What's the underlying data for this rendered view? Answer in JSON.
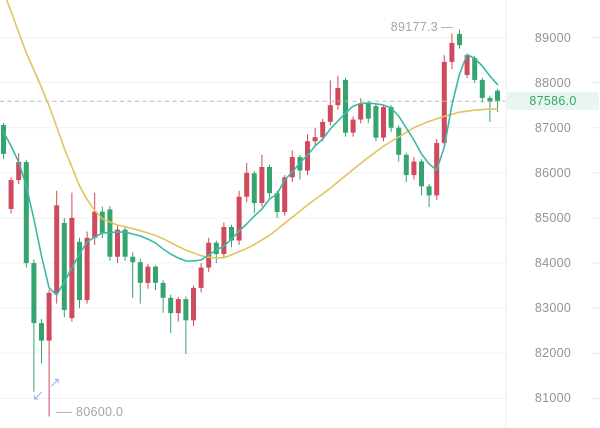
{
  "chart_data": {
    "type": "candlestick",
    "title": "",
    "color_convention": "red = up, green = down",
    "current_price": 87586.0,
    "current_price_label": "87586.0",
    "high": 89177.3,
    "high_label": "89177.3",
    "low": 80600.0,
    "low_label": "80600.0",
    "y_axis_ticks": [
      "89000",
      "88000",
      "87000",
      "86000",
      "85000",
      "84000",
      "83000",
      "82000",
      "81000"
    ],
    "ylim": [
      80343,
      89831
    ],
    "grid": "horizontal-faint",
    "legend": "none",
    "candles_ohlc": [
      [
        87060,
        87110,
        86300,
        86420
      ],
      [
        85200,
        85900,
        85100,
        85840
      ],
      [
        85840,
        86440,
        85750,
        86240
      ],
      [
        86240,
        86290,
        83900,
        84000
      ],
      [
        84000,
        84080,
        81150,
        82670
      ],
      [
        82670,
        82760,
        81780,
        82280
      ],
      [
        82280,
        83400,
        80600,
        83340
      ],
      [
        83340,
        85600,
        83100,
        85280
      ],
      [
        84890,
        85000,
        82800,
        82960
      ],
      [
        82780,
        85560,
        82700,
        85000
      ],
      [
        84470,
        84560,
        83000,
        83180
      ],
      [
        83180,
        84700,
        83100,
        84560
      ],
      [
        84560,
        85560,
        84400,
        85140
      ],
      [
        85140,
        85250,
        84550,
        84670
      ],
      [
        85190,
        85260,
        84050,
        84140
      ],
      [
        84140,
        84850,
        84000,
        84740
      ],
      [
        84740,
        84800,
        84050,
        84140
      ],
      [
        84140,
        84240,
        83230,
        84020
      ],
      [
        84020,
        84100,
        83100,
        83560
      ],
      [
        83560,
        83980,
        83430,
        83920
      ],
      [
        83920,
        83950,
        83400,
        83560
      ],
      [
        83560,
        83620,
        82900,
        83230
      ],
      [
        83230,
        83300,
        82450,
        82890
      ],
      [
        82890,
        83250,
        82700,
        83200
      ],
      [
        83200,
        83260,
        81980,
        82730
      ],
      [
        82730,
        83500,
        82600,
        83450
      ],
      [
        83450,
        84000,
        83350,
        83900
      ],
      [
        83900,
        84560,
        83800,
        84450
      ],
      [
        84450,
        84500,
        84000,
        84200
      ],
      [
        84200,
        84900,
        84100,
        84800
      ],
      [
        84800,
        84850,
        84350,
        84500
      ],
      [
        84500,
        85600,
        84400,
        85470
      ],
      [
        85470,
        86220,
        85350,
        86000
      ],
      [
        85990,
        86040,
        85100,
        85330
      ],
      [
        85330,
        86400,
        85250,
        86130
      ],
      [
        86130,
        86180,
        85450,
        85550
      ],
      [
        85550,
        85600,
        85000,
        85130
      ],
      [
        85130,
        85950,
        85050,
        85900
      ],
      [
        85900,
        86500,
        85800,
        86350
      ],
      [
        86350,
        86400,
        85850,
        86050
      ],
      [
        86050,
        86850,
        85950,
        86700
      ],
      [
        86700,
        87000,
        86600,
        86790
      ],
      [
        86790,
        87200,
        86700,
        87130
      ],
      [
        87130,
        88050,
        87050,
        87500
      ],
      [
        87500,
        88150,
        87400,
        87880
      ],
      [
        88060,
        88110,
        86800,
        86890
      ],
      [
        86890,
        87250,
        86800,
        87180
      ],
      [
        87180,
        87650,
        87100,
        87540
      ],
      [
        87540,
        87600,
        87100,
        87200
      ],
      [
        87480,
        87530,
        86700,
        86780
      ],
      [
        86780,
        87500,
        86700,
        87460
      ],
      [
        87460,
        87500,
        86900,
        87000
      ],
      [
        87000,
        87050,
        86250,
        86400
      ],
      [
        86400,
        86450,
        85800,
        85950
      ],
      [
        85950,
        86350,
        85850,
        86250
      ],
      [
        86250,
        86300,
        85500,
        85700
      ],
      [
        85700,
        85750,
        85240,
        85500
      ],
      [
        85500,
        86750,
        85400,
        86660
      ],
      [
        86660,
        88610,
        86600,
        88460
      ],
      [
        88460,
        89090,
        88300,
        88880
      ],
      [
        89080,
        89177.3,
        88750,
        88830
      ],
      [
        88170,
        88640,
        88100,
        88610
      ],
      [
        88545,
        88590,
        87990,
        88060
      ],
      [
        88060,
        88110,
        87550,
        87660
      ],
      [
        87660,
        87710,
        87130,
        87570
      ],
      [
        87820,
        87860,
        87350,
        87586
      ]
    ],
    "ma_short": [
      86905,
      86594,
      86240,
      85708,
      84976,
      84156,
      83446,
      83291,
      83579,
      83890,
      84200,
      84466,
      84577,
      84665,
      84676,
      84687,
      84687,
      84643,
      84599,
      84532,
      84444,
      84311,
      84200,
      84111,
      84045,
      84045,
      84067,
      84178,
      84289,
      84377,
      84532,
      84710,
      84865,
      85042,
      85197,
      85419,
      85530,
      85840,
      86017,
      86217,
      86394,
      86594,
      86749,
      86971,
      87148,
      87325,
      87480,
      87537,
      87548,
      87530,
      87503,
      87437,
      87259,
      86993,
      86727,
      86417,
      86195,
      86062,
      86572,
      87503,
      88190,
      88623,
      88534,
      88368,
      88146,
      87958
    ],
    "ma_long": [
      90009,
      89579,
      89111,
      88659,
      88279,
      87891,
      87484,
      87016,
      86541,
      86127,
      85712,
      85408,
      85167,
      84978,
      84909,
      84843,
      84805,
      84761,
      84717,
      84666,
      84610,
      84539,
      84453,
      84366,
      84286,
      84226,
      84162,
      84129,
      84113,
      84118,
      84180,
      84255,
      84321,
      84412,
      84512,
      84614,
      84747,
      84882,
      85015,
      85150,
      85286,
      85410,
      85534,
      85660,
      85800,
      85937,
      86073,
      86208,
      86343,
      86467,
      86591,
      86695,
      86795,
      86899,
      87001,
      87072,
      87143,
      87196,
      87254,
      87298,
      87345,
      87367,
      87391,
      87402,
      87413,
      87413
    ],
    "colors": {
      "up": "#ce4a5c",
      "down": "#36a46e",
      "ma_short": "#3ab9a4",
      "ma_long": "#e2c35f",
      "current_price_text": "#2fa768",
      "current_price_bg": "#e9f6ef",
      "dashed_line": "#b6bac1",
      "grid": "#f0f1f4",
      "axis_line": "#ececef",
      "axis_text": "#8f9399",
      "annotation_text": "#a3a5a9",
      "connector": "#b0b0b4",
      "gesture_arrow": "#a9b7e6"
    }
  },
  "annotations": {
    "arrow_ne": "↗",
    "arrow_sw": "↙"
  }
}
